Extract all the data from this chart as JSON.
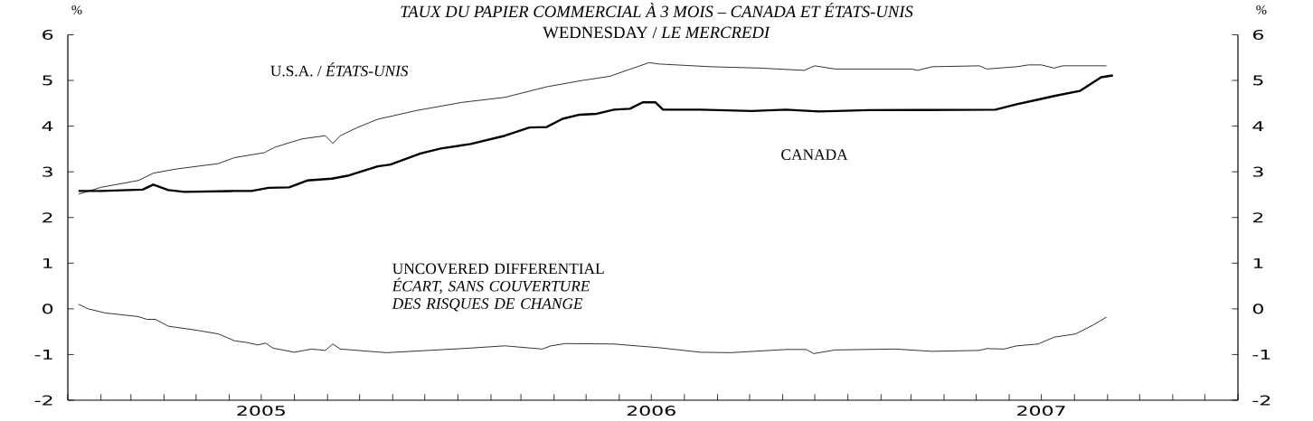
{
  "chart_data": {
    "type": "line",
    "title": "TAUX DU PAPIER COMMERCIAL À 3 MOIS – CANADA ET ÉTATS-UNIS",
    "subtitle": "WEDNESDAY / *LE MERCREDI*",
    "ylabel": "%",
    "y2label": "%",
    "xlim": [
      "2005-01-01",
      "2008-01-01"
    ],
    "xticks": [
      {
        "value": "2005-01-01",
        "label": null
      },
      {
        "value": "2005-02-01",
        "label": null
      },
      {
        "value": "2005-03-01",
        "label": null
      },
      {
        "value": "2005-04-01",
        "label": null
      },
      {
        "value": "2005-05-01",
        "label": null
      },
      {
        "value": "2005-06-01",
        "label": null
      },
      {
        "value": "2005-07-01",
        "label": "2005"
      },
      {
        "value": "2005-08-01",
        "label": null
      },
      {
        "value": "2005-09-01",
        "label": null
      },
      {
        "value": "2005-10-01",
        "label": null
      },
      {
        "value": "2005-11-01",
        "label": null
      },
      {
        "value": "2005-12-01",
        "label": null
      },
      {
        "value": "2006-01-01",
        "label": null
      },
      {
        "value": "2006-02-01",
        "label": null
      },
      {
        "value": "2006-03-01",
        "label": null
      },
      {
        "value": "2006-04-01",
        "label": null
      },
      {
        "value": "2006-05-01",
        "label": null
      },
      {
        "value": "2006-06-01",
        "label": null
      },
      {
        "value": "2006-07-01",
        "label": "2006"
      },
      {
        "value": "2006-08-01",
        "label": null
      },
      {
        "value": "2006-09-01",
        "label": null
      },
      {
        "value": "2006-10-01",
        "label": null
      },
      {
        "value": "2006-11-01",
        "label": null
      },
      {
        "value": "2006-12-01",
        "label": null
      },
      {
        "value": "2007-01-01",
        "label": null
      },
      {
        "value": "2007-02-01",
        "label": null
      },
      {
        "value": "2007-03-01",
        "label": null
      },
      {
        "value": "2007-04-01",
        "label": null
      },
      {
        "value": "2007-05-01",
        "label": null
      },
      {
        "value": "2007-06-01",
        "label": null
      },
      {
        "value": "2007-07-01",
        "label": "2007"
      },
      {
        "value": "2007-08-01",
        "label": null
      },
      {
        "value": "2007-09-01",
        "label": null
      },
      {
        "value": "2007-10-01",
        "label": null
      },
      {
        "value": "2007-11-01",
        "label": null
      },
      {
        "value": "2007-12-01",
        "label": null
      },
      {
        "value": "2008-01-01",
        "label": null
      }
    ],
    "ylim": [
      -2,
      6
    ],
    "yticks": [
      -2,
      -1,
      0,
      1,
      2,
      3,
      4,
      5,
      6
    ],
    "y2lim": [
      -2,
      6
    ],
    "y2ticks": [
      -2,
      -1,
      0,
      1,
      2,
      3,
      4,
      5,
      6
    ],
    "series": [
      {
        "name": "U.S.A. / *ÉTATS-UNIS*",
        "color": "#000000",
        "x": [
          "2005-01-11",
          "2005-02-01",
          "2005-03-08",
          "2005-03-22",
          "2005-04-12",
          "2005-05-22",
          "2005-06-06",
          "2005-07-04",
          "2005-07-14",
          "2005-08-08",
          "2005-08-30",
          "2005-09-06",
          "2005-09-13",
          "2005-09-29",
          "2005-10-18",
          "2005-11-23",
          "2006-01-05",
          "2006-02-14",
          "2006-03-25",
          "2006-04-25",
          "2006-05-23",
          "2006-06-29",
          "2006-07-08",
          "2006-08-25",
          "2006-10-11",
          "2006-11-21",
          "2006-12-01",
          "2006-12-20",
          "2007-03-02",
          "2007-03-07",
          "2007-03-21",
          "2007-05-04",
          "2007-05-11",
          "2007-06-08",
          "2007-06-19",
          "2007-07-01",
          "2007-07-13",
          "2007-07-21",
          "2007-08-06",
          "2007-08-31"
        ],
        "values": [
          2.51,
          2.66,
          2.81,
          2.97,
          3.06,
          3.18,
          3.31,
          3.42,
          3.54,
          3.72,
          3.79,
          3.62,
          3.79,
          3.97,
          4.15,
          4.34,
          4.52,
          4.63,
          4.86,
          4.99,
          5.09,
          5.39,
          5.36,
          5.3,
          5.27,
          5.22,
          5.32,
          5.25,
          5.25,
          5.22,
          5.3,
          5.32,
          5.25,
          5.3,
          5.34,
          5.34,
          5.27,
          5.32,
          5.32,
          5.32
        ]
      },
      {
        "name": "CANADA",
        "color": "#000000",
        "x": [
          "2005-01-11",
          "2005-02-01",
          "2005-03-12",
          "2005-03-22",
          "2005-04-05",
          "2005-04-20",
          "2005-06-06",
          "2005-06-22",
          "2005-07-08",
          "2005-07-27",
          "2005-08-13",
          "2005-09-05",
          "2005-09-21",
          "2005-10-18",
          "2005-10-30",
          "2005-11-27",
          "2005-12-16",
          "2006-01-13",
          "2006-02-14",
          "2006-03-09",
          "2006-03-25",
          "2006-04-09",
          "2006-04-25",
          "2006-05-11",
          "2006-05-27",
          "2006-06-11",
          "2006-06-23",
          "2006-07-05",
          "2006-07-12",
          "2006-08-16",
          "2006-10-03",
          "2006-11-04",
          "2006-12-05",
          "2007-01-21",
          "2007-05-19",
          "2007-06-08",
          "2007-06-28",
          "2007-07-13",
          "2007-08-06",
          "2007-08-26",
          "2007-09-06"
        ],
        "values": [
          2.58,
          2.58,
          2.61,
          2.72,
          2.6,
          2.56,
          2.58,
          2.58,
          2.65,
          2.66,
          2.81,
          2.85,
          2.92,
          3.12,
          3.16,
          3.4,
          3.51,
          3.61,
          3.79,
          3.97,
          3.98,
          4.16,
          4.25,
          4.27,
          4.36,
          4.38,
          4.52,
          4.52,
          4.36,
          4.36,
          4.33,
          4.36,
          4.32,
          4.35,
          4.36,
          4.48,
          4.58,
          4.66,
          4.77,
          5.07,
          5.11
        ]
      },
      {
        "name": "UNCOVERED DIFFERENTIAL *ÉCART, SANS COUVERTURE DES RISQUES DE CHANGE*",
        "color": "#000000",
        "x": [
          "2005-01-11",
          "2005-01-20",
          "2005-02-05",
          "2005-03-08",
          "2005-03-16",
          "2005-03-24",
          "2005-04-05",
          "2005-05-02",
          "2005-05-22",
          "2005-06-06",
          "2005-06-16",
          "2005-06-28",
          "2005-07-05",
          "2005-07-12",
          "2005-08-01",
          "2005-08-17",
          "2005-08-30",
          "2005-09-06",
          "2005-09-13",
          "2005-10-26",
          "2006-01-05",
          "2006-02-14",
          "2006-03-21",
          "2006-03-29",
          "2006-04-12",
          "2006-05-27",
          "2006-07-08",
          "2006-08-16",
          "2006-09-13",
          "2006-11-04",
          "2006-11-23",
          "2006-11-30",
          "2006-12-20",
          "2007-02-14",
          "2007-03-21",
          "2007-05-04",
          "2007-05-11",
          "2007-05-27",
          "2007-06-08",
          "2007-06-28",
          "2007-07-13",
          "2007-08-02",
          "2007-08-18",
          "2007-08-31"
        ],
        "values": [
          0.1,
          0.0,
          -0.09,
          -0.17,
          -0.23,
          -0.23,
          -0.38,
          -0.47,
          -0.55,
          -0.7,
          -0.73,
          -0.79,
          -0.75,
          -0.86,
          -0.95,
          -0.88,
          -0.91,
          -0.77,
          -0.88,
          -0.96,
          -0.87,
          -0.81,
          -0.88,
          -0.81,
          -0.76,
          -0.77,
          -0.85,
          -0.95,
          -0.96,
          -0.89,
          -0.89,
          -0.98,
          -0.9,
          -0.88,
          -0.93,
          -0.91,
          -0.87,
          -0.88,
          -0.81,
          -0.77,
          -0.62,
          -0.55,
          -0.36,
          -0.18
        ]
      }
    ]
  }
}
